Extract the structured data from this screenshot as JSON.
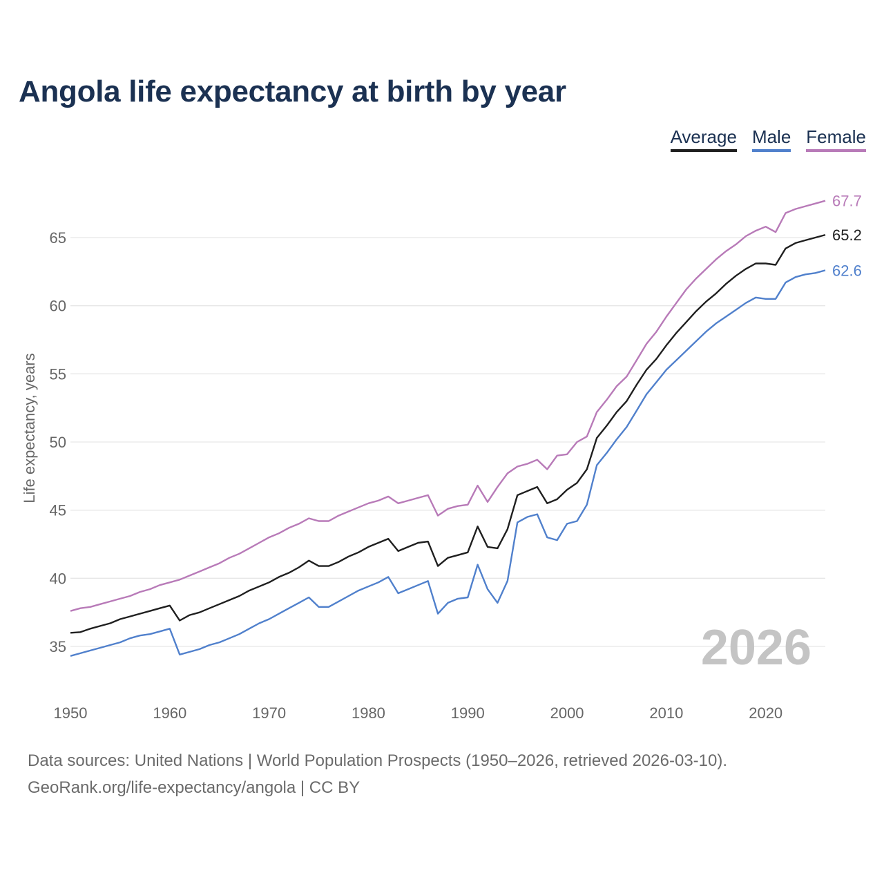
{
  "title": "Angola life expectancy at birth by year",
  "legend": [
    {
      "label": "Average",
      "color": "#1f1f1f"
    },
    {
      "label": "Male",
      "color": "#5080cc"
    },
    {
      "label": "Female",
      "color": "#b87ab8"
    }
  ],
  "footer": {
    "sources": "Data sources: United Nations | World Population Prospects (1950–2026, retrieved 2026-03-10).",
    "credit": "GeoRank.org/life-expectancy/angola | CC BY"
  },
  "chart_data": {
    "type": "line",
    "title": "Angola life expectancy at birth by year",
    "xlabel": "",
    "ylabel": "Life expectancy, years",
    "xlim": [
      1950,
      2026
    ],
    "ylim": [
      32.5,
      68.5
    ],
    "x_ticks": [
      "1950",
      "1960",
      "1970",
      "1980",
      "1990",
      "2000",
      "2010",
      "2020"
    ],
    "y_ticks": [
      "35",
      "40",
      "45",
      "50",
      "55",
      "60",
      "65"
    ],
    "grid": true,
    "legend_position": "top-right",
    "watermark_year": "2026",
    "x_start": 1950,
    "series": [
      {
        "name": "Average",
        "end_label": "65.2",
        "values": [
          36.0,
          36.05,
          36.3,
          36.5,
          36.7,
          37.0,
          37.2,
          37.4,
          37.6,
          37.8,
          38.0,
          36.9,
          37.3,
          37.5,
          37.8,
          38.1,
          38.4,
          38.7,
          39.1,
          39.4,
          39.7,
          40.1,
          40.4,
          40.8,
          41.3,
          40.9,
          40.9,
          41.2,
          41.6,
          41.9,
          42.3,
          42.6,
          42.9,
          42.0,
          42.3,
          42.6,
          42.7,
          40.9,
          41.5,
          41.7,
          41.9,
          43.8,
          42.3,
          42.2,
          43.6,
          46.1,
          46.4,
          46.7,
          45.5,
          45.8,
          46.5,
          47.0,
          48.0,
          50.3,
          51.2,
          52.2,
          53.0,
          54.2,
          55.3,
          56.1,
          57.1,
          58.0,
          58.8,
          59.6,
          60.3,
          60.9,
          61.6,
          62.2,
          62.7,
          63.1,
          63.1,
          63.0,
          64.2,
          64.6,
          64.8,
          65.0,
          65.2
        ]
      },
      {
        "name": "Male",
        "end_label": "62.6",
        "values": [
          34.3,
          34.5,
          34.7,
          34.9,
          35.1,
          35.3,
          35.6,
          35.8,
          35.9,
          36.1,
          36.3,
          34.4,
          34.6,
          34.8,
          35.1,
          35.3,
          35.6,
          35.9,
          36.3,
          36.7,
          37.0,
          37.4,
          37.8,
          38.2,
          38.6,
          37.9,
          37.9,
          38.3,
          38.7,
          39.1,
          39.4,
          39.7,
          40.1,
          38.9,
          39.2,
          39.5,
          39.8,
          37.4,
          38.2,
          38.5,
          38.6,
          41.0,
          39.2,
          38.2,
          39.8,
          44.1,
          44.5,
          44.7,
          43.0,
          42.8,
          44.0,
          44.2,
          45.4,
          48.3,
          49.2,
          50.2,
          51.1,
          52.3,
          53.5,
          54.4,
          55.3,
          56.0,
          56.7,
          57.4,
          58.1,
          58.7,
          59.2,
          59.7,
          60.2,
          60.6,
          60.5,
          60.5,
          61.7,
          62.1,
          62.3,
          62.4,
          62.6
        ]
      },
      {
        "name": "Female",
        "end_label": "67.7",
        "values": [
          37.6,
          37.8,
          37.9,
          38.1,
          38.3,
          38.5,
          38.7,
          39.0,
          39.2,
          39.5,
          39.7,
          39.9,
          40.2,
          40.5,
          40.8,
          41.1,
          41.5,
          41.8,
          42.2,
          42.6,
          43.0,
          43.3,
          43.7,
          44.0,
          44.4,
          44.2,
          44.2,
          44.6,
          44.9,
          45.2,
          45.5,
          45.7,
          46.0,
          45.5,
          45.7,
          45.9,
          46.1,
          44.6,
          45.1,
          45.3,
          45.4,
          46.8,
          45.6,
          46.7,
          47.7,
          48.2,
          48.4,
          48.7,
          48.0,
          49.0,
          49.1,
          50.0,
          50.4,
          52.2,
          53.1,
          54.1,
          54.8,
          56.0,
          57.2,
          58.1,
          59.2,
          60.2,
          61.2,
          62.0,
          62.7,
          63.4,
          64.0,
          64.5,
          65.1,
          65.5,
          65.8,
          65.4,
          66.8,
          67.1,
          67.3,
          67.5,
          67.7
        ]
      }
    ]
  }
}
